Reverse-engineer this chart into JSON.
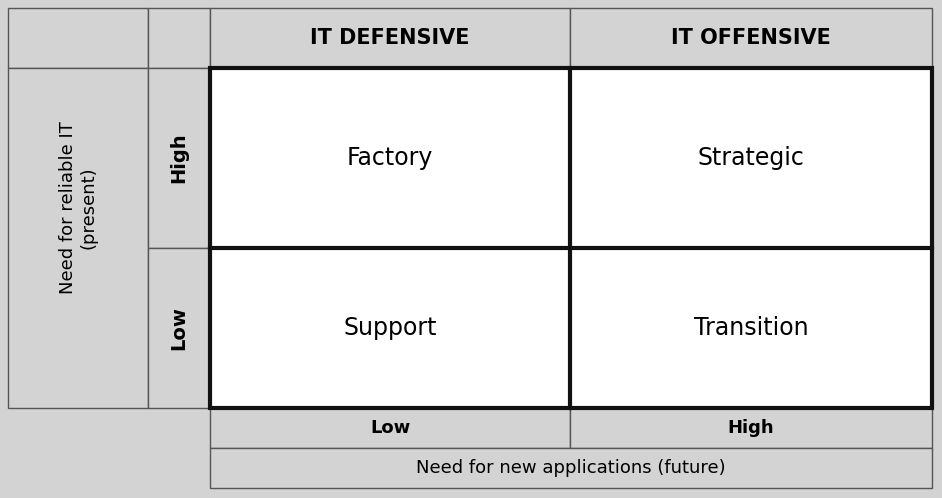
{
  "col_headers": [
    "IT DEFENSIVE",
    "IT OFFENSIVE"
  ],
  "row_labels": [
    "High",
    "Low"
  ],
  "col_labels": [
    "Low",
    "High"
  ],
  "quadrant_labels": [
    [
      "Factory",
      "Strategic"
    ],
    [
      "Support",
      "Transition"
    ]
  ],
  "y_axis_label": "Need for reliable IT\n(present)",
  "x_axis_label": "Need for new applications (future)",
  "bg_color": "#d3d3d3",
  "cell_bg_color": "#ffffff",
  "thick_border_color": "#111111",
  "thin_border_color": "#555555",
  "quadrant_font_size": 17,
  "header_font_size": 15,
  "label_font_size": 13,
  "axis_font_size": 13,
  "row_col_label_font_size": 14
}
